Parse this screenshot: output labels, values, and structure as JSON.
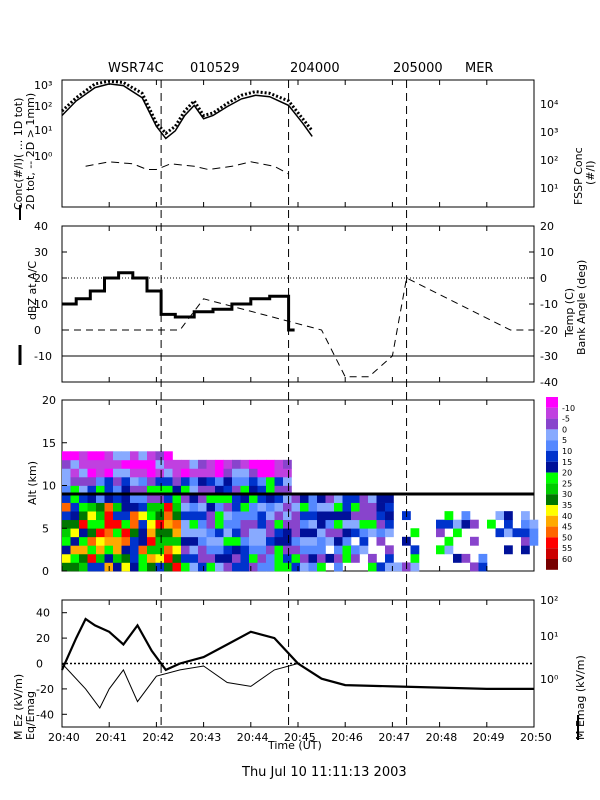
{
  "header": {
    "station": "WSR74C",
    "date": "010529",
    "time1": "204000",
    "time2": "205000",
    "location": "MER"
  },
  "footer": "Thu Jul 10 11:11:13 2003",
  "panels": {
    "xlabel": "Time (UT)",
    "x_ticks": [
      "20:40",
      "20:41",
      "20:42",
      "20:43",
      "20:44",
      "20:45",
      "20:46",
      "20:47",
      "20:48",
      "20:49",
      "20:50"
    ],
    "markers_min": [
      2.1,
      4.8,
      7.3
    ],
    "p1": {
      "ylabel_1": "Conc(#/l)( ... 1D tot)",
      "ylabel_2": "2D tot, -- 2D > 1mm)",
      "rlabel_1": "FSSP Conc",
      "rlabel_2": "(#/l)",
      "left_ticks": [
        "10³",
        "10²",
        "10¹",
        "10⁰"
      ],
      "right_ticks": [
        "10⁴",
        "10³",
        "10²",
        "10¹"
      ]
    },
    "p2": {
      "ylabel": "dBZ at A/C",
      "rlabel_1": "Temp (C)",
      "rlabel_2": "Bank Angle (deg)",
      "left_ticks": [
        "40",
        "30",
        "20",
        "10",
        "0",
        "-10"
      ],
      "right_ticks": [
        "20",
        "10",
        "0",
        "-10",
        "-20",
        "-30",
        "-40"
      ]
    },
    "p3": {
      "ylabel": "Alt (km)",
      "left_ticks": [
        "20",
        "15",
        "10",
        "5",
        "0"
      ],
      "colorbar_labels": [
        "-10",
        "-5",
        "0",
        "5",
        "10",
        "15",
        "20",
        "25",
        "30",
        "35",
        "40",
        "45",
        "50",
        "55",
        "60"
      ],
      "colorbar_colors": [
        "#ff00ff",
        "#c040e0",
        "#8844cc",
        "#88aaff",
        "#5588ff",
        "#0033cc",
        "#001199",
        "#00ff00",
        "#00cc00",
        "#007700",
        "#ffff00",
        "#ffaa00",
        "#ff6600",
        "#ff0000",
        "#cc0000",
        "#770000"
      ]
    },
    "p4": {
      "ylabel_1": "M Ez (kV/m)",
      "ylabel_2": "Eq/Emag",
      "rlabel": "M Emag (kV/m)",
      "left_ticks": [
        "40",
        "20",
        "0",
        "-20",
        "-40"
      ],
      "right_ticks": [
        "10²",
        "10¹",
        "10⁰"
      ]
    }
  },
  "chart_data": [
    {
      "type": "line",
      "panel": "particle-concentration",
      "x_unit": "minutes after 20:40 UT",
      "yscale": "log",
      "ylim": [
        0.01,
        1000
      ],
      "series": [
        {
          "name": "1D tot",
          "x": [
            0,
            0.3,
            0.7,
            1.0,
            1.3,
            1.7,
            2.0,
            2.2,
            2.4,
            2.6,
            2.8,
            3.0,
            3.2,
            3.5,
            3.8,
            4.1,
            4.4,
            4.8,
            5.1,
            5.3
          ],
          "y": [
            60,
            200,
            700,
            900,
            800,
            300,
            20,
            8,
            15,
            60,
            150,
            40,
            50,
            120,
            250,
            350,
            300,
            150,
            30,
            10
          ]
        },
        {
          "name": "2D tot",
          "x": [
            0,
            0.3,
            0.7,
            1.0,
            1.3,
            1.7,
            2.0,
            2.2,
            2.4,
            2.6,
            2.8,
            3.0,
            3.2,
            3.5,
            3.8,
            4.1,
            4.4,
            4.8,
            5.1,
            5.3
          ],
          "y": [
            40,
            150,
            500,
            700,
            600,
            200,
            15,
            5,
            10,
            40,
            100,
            30,
            40,
            90,
            180,
            250,
            220,
            100,
            20,
            6
          ]
        },
        {
          "name": "2D > 1mm",
          "x": [
            0.5,
            1.0,
            1.5,
            1.8,
            2.0,
            2.3,
            2.8,
            3.1,
            3.6,
            4.0,
            4.5,
            4.8
          ],
          "y": [
            0.4,
            0.6,
            0.5,
            0.3,
            0.3,
            0.5,
            0.4,
            0.3,
            0.4,
            0.6,
            0.4,
            0.2
          ]
        }
      ]
    },
    {
      "type": "line",
      "panel": "reflectivity-temperature-bank",
      "ylim": [
        -20,
        40
      ],
      "series": [
        {
          "name": "dBZ at A/C",
          "x": [
            0,
            0.3,
            0.6,
            0.9,
            1.2,
            1.5,
            1.8,
            2.1,
            2.4,
            2.8,
            3.2,
            3.6,
            4.0,
            4.4,
            4.8
          ],
          "y": [
            10,
            12,
            15,
            20,
            22,
            20,
            15,
            6,
            5,
            7,
            8,
            10,
            12,
            13,
            0
          ]
        },
        {
          "name": "Temp",
          "x": [
            0,
            5,
            10
          ],
          "y": [
            -10,
            -10,
            -10
          ]
        },
        {
          "name": "Bank Angle",
          "x": [
            0,
            1.5,
            2.5,
            3.0,
            5.5,
            6.0,
            6.5,
            7.0,
            7.3,
            9.5,
            10
          ],
          "y": [
            0,
            0,
            0,
            12,
            0,
            -18,
            -18,
            -10,
            20,
            0,
            0
          ]
        }
      ]
    },
    {
      "type": "heatmap",
      "panel": "radar-reflectivity-vs-altitude",
      "ylabel": "Alt (km)",
      "ylim": [
        0,
        20
      ],
      "flight_altitude_km": 9.0
    },
    {
      "type": "line",
      "panel": "electric-field",
      "ylim": [
        -50,
        50
      ],
      "series": [
        {
          "name": "M Ez",
          "x": [
            0,
            0.3,
            0.5,
            0.7,
            1.0,
            1.3,
            1.6,
            1.9,
            2.2,
            2.5,
            3.0,
            3.5,
            4.0,
            4.5,
            5.0,
            5.5,
            6.0,
            7.0,
            8.0,
            9.0,
            10.0
          ],
          "y": [
            -5,
            20,
            35,
            30,
            25,
            15,
            30,
            10,
            -5,
            0,
            5,
            15,
            25,
            20,
            0,
            -12,
            -17,
            -18,
            -19,
            -20,
            -20
          ]
        },
        {
          "name": "Eq/Emag",
          "x": [
            0,
            0.5,
            0.8,
            1.0,
            1.3,
            1.6,
            2.0,
            2.5,
            3.0,
            3.5,
            4.0,
            4.5,
            5.0
          ],
          "y": [
            0,
            -20,
            -35,
            -20,
            -5,
            -30,
            -10,
            -5,
            -2,
            -15,
            -18,
            -5,
            0
          ]
        },
        {
          "name": "M Emag",
          "x": [
            0,
            10
          ],
          "y": [
            0,
            0
          ]
        }
      ]
    }
  ]
}
